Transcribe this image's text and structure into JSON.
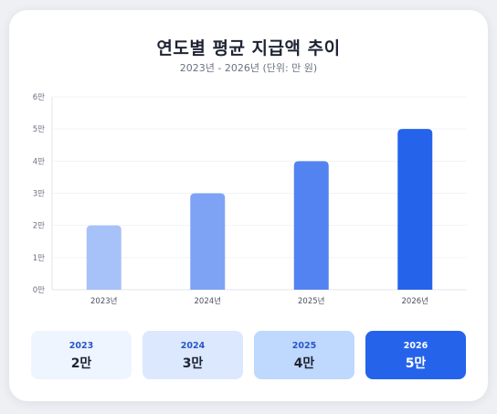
{
  "header": {
    "title": "연도별 평균 지급액 추이",
    "subtitle": "2023년 - 2026년 (단위: 만 원)"
  },
  "chart_data": {
    "type": "bar",
    "categories": [
      "2023년",
      "2024년",
      "2025년",
      "2026년"
    ],
    "values": [
      2,
      3,
      4,
      5
    ],
    "ylim": [
      0,
      6
    ],
    "yticks": [
      0,
      1,
      2,
      3,
      4,
      5,
      6
    ],
    "ytick_labels": [
      "0만",
      "1만",
      "2만",
      "3만",
      "4만",
      "5만",
      "6만"
    ],
    "grid": true,
    "bar_colors": [
      "#a7c1f9",
      "#7ea3f5",
      "#5383f0",
      "#2563eb"
    ]
  },
  "stats": [
    {
      "year": "2023",
      "value": "2만",
      "bg": "#eff5ff",
      "year_color": "#2a55c8",
      "value_color": "#1e2433"
    },
    {
      "year": "2024",
      "value": "3만",
      "bg": "#dce8fe",
      "year_color": "#2a55c8",
      "value_color": "#1e2433"
    },
    {
      "year": "2025",
      "value": "4만",
      "bg": "#bfd8fe",
      "year_color": "#2a55c8",
      "value_color": "#1e2433"
    },
    {
      "year": "2026",
      "value": "5만",
      "bg": "#2563eb",
      "year_color": "#ffffff",
      "value_color": "#ffffff"
    }
  ]
}
